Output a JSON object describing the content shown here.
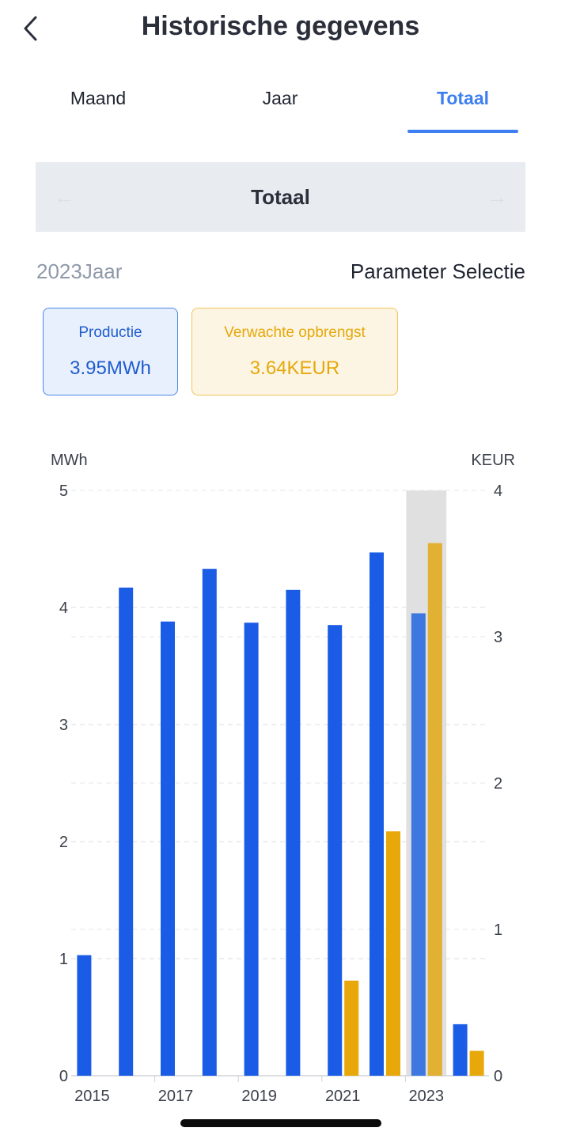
{
  "header": {
    "title": "Historische gegevens",
    "back_icon": "chevron-left-icon"
  },
  "tabs": [
    {
      "label": "Maand",
      "active": false
    },
    {
      "label": "Jaar",
      "active": false
    },
    {
      "label": "Totaal",
      "active": true
    }
  ],
  "period": {
    "label": "Totaal",
    "prev_icon": "arrow-left-icon",
    "next_icon": "arrow-right-icon"
  },
  "meta": {
    "year_label": "2023Jaar",
    "param_select": "Parameter Selectie"
  },
  "cards": {
    "production": {
      "title": "Productie",
      "value": "3.95MWh"
    },
    "revenue": {
      "title": "Verwachte opbrengst",
      "value": "3.64KEUR"
    }
  },
  "colors": {
    "accent": "#3d7ff0",
    "production_bar": "#1a5ce6",
    "revenue_bar": "#e8a80a",
    "highlight_bg": "#e0e0e0"
  },
  "chart_data": {
    "type": "bar",
    "categories": [
      "2015",
      "2016",
      "2017",
      "2018",
      "2019",
      "2020",
      "2021",
      "2022",
      "2023",
      "2024"
    ],
    "x_tick_labels": [
      "2015",
      "2017",
      "2019",
      "2021",
      "2023"
    ],
    "series": [
      {
        "axis": "left",
        "values": [
          1.03,
          4.17,
          3.88,
          4.33,
          3.87,
          4.15,
          3.85,
          4.47,
          3.95,
          0.44
        ]
      },
      {
        "axis": "right",
        "values": [
          0,
          0,
          0,
          0,
          0,
          0,
          0.65,
          1.67,
          3.64,
          0.17
        ]
      }
    ],
    "y_left": {
      "label": "MWh",
      "ticks": [
        "0",
        "1",
        "2",
        "3",
        "4",
        "5"
      ],
      "range": [
        0,
        5
      ]
    },
    "y_right": {
      "label": "KEUR",
      "ticks": [
        "0",
        "1",
        "2",
        "3",
        "4"
      ],
      "range": [
        0,
        4
      ]
    },
    "highlighted_category": "2023",
    "grid": true
  }
}
